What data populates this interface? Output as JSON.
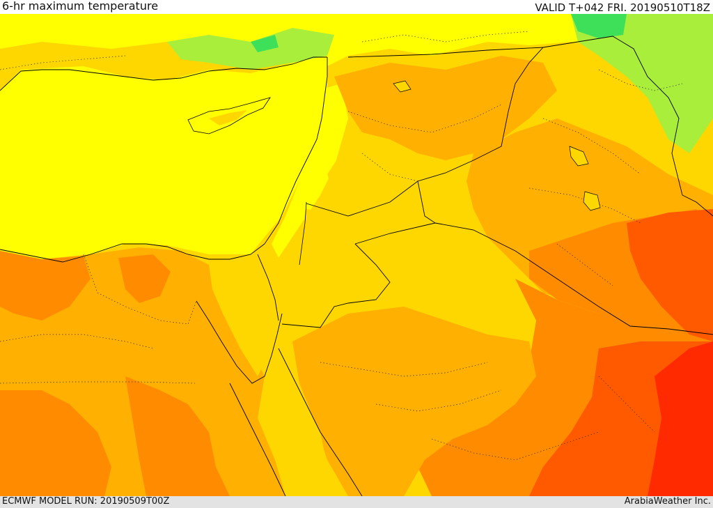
{
  "header": {
    "title": "6-hr maximum temperature",
    "valid": "VALID T+042 FRI. 20190510T18Z"
  },
  "footer": {
    "model_run": "ECMWF MODEL RUN: 20190509T00Z",
    "credit": "ArabiaWeather Inc."
  },
  "palette": {
    "light_green": "#a8ee3a",
    "green": "#3ee05a",
    "yellow": "#ffff00",
    "gold": "#ffd700",
    "amber": "#ffb000",
    "orange": "#ff8c00",
    "dark_orange": "#ff5a00",
    "red": "#ff2a00",
    "border_color": "#000000"
  }
}
